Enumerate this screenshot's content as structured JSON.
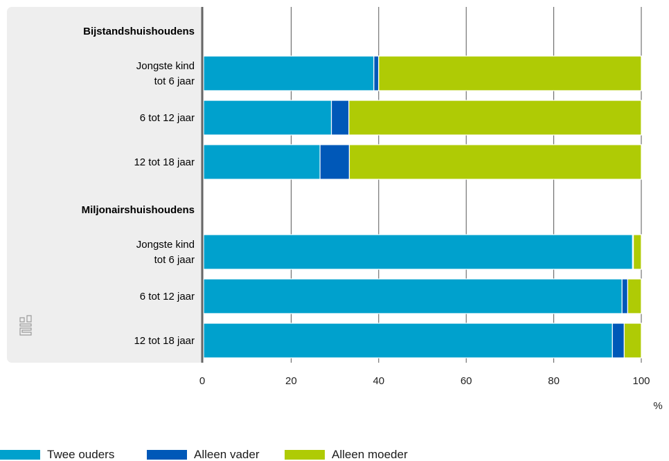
{
  "chart_data": {
    "type": "bar",
    "orientation": "horizontal",
    "stacked": true,
    "groups": [
      {
        "title": "Bijstandshuishoudens",
        "categories": [
          [
            "Jongste kind",
            "tot 6 jaar"
          ],
          [
            "6 tot 12 jaar"
          ],
          [
            "12 tot 18 jaar"
          ]
        ]
      },
      {
        "title": "Miljonairshuishoudens",
        "categories": [
          [
            "Jongste kind",
            "tot 6 jaar"
          ],
          [
            "6 tot 12 jaar"
          ],
          [
            "12 tot 18 jaar"
          ]
        ]
      }
    ],
    "series": [
      {
        "name": "Twee ouders",
        "color": "#00a1cd",
        "values": [
          38.9,
          29.2,
          26.6,
          98.0,
          95.6,
          93.4
        ]
      },
      {
        "name": "Alleen vader",
        "color": "#0058b8",
        "values": [
          1.1,
          4.0,
          6.7,
          0.2,
          1.3,
          2.7
        ]
      },
      {
        "name": "Alleen moeder",
        "color": "#afcb05",
        "values": [
          60.0,
          66.8,
          66.7,
          1.8,
          3.1,
          3.9
        ]
      }
    ],
    "xlim": [
      0,
      100
    ],
    "xticks": [
      0,
      20,
      40,
      60,
      80,
      100
    ],
    "xunit": "%",
    "grid": true,
    "legend_position": "bottom-left",
    "logo": "cbs-logo"
  }
}
